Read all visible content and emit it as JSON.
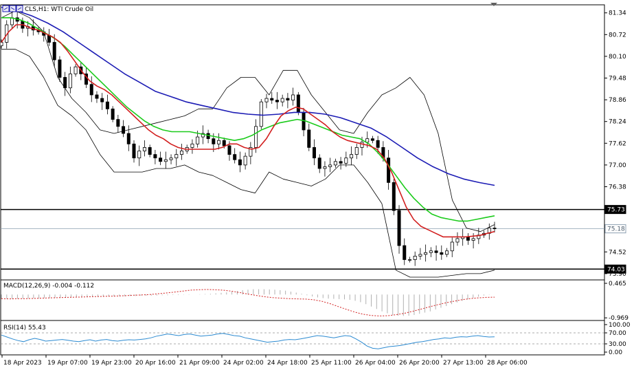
{
  "chart_data": [
    {
      "type": "line",
      "symbol": "CLS",
      "timeframe": "H1",
      "title": "WTI Crude Oil",
      "x_labels": [
        "18 Apr 2023",
        "19 Apr 07:00",
        "19 Apr 23:00",
        "20 Apr 16:00",
        "21 Apr 09:00",
        "24 Apr 02:00",
        "24 Apr 18:00",
        "25 Apr 11:00",
        "26 Apr 04:00",
        "26 Apr 20:00",
        "27 Apr 13:00",
        "28 Apr 06:00"
      ],
      "y_ticks": [
        "81.34",
        "80.72",
        "80.10",
        "79.48",
        "78.86",
        "78.24",
        "77.62",
        "77.00",
        "76.38",
        "74.52",
        "73.90"
      ],
      "ylim": [
        73.78,
        81.55
      ],
      "price_labels": [
        {
          "value": 75.73,
          "text": "75.73",
          "style": "black"
        },
        {
          "value": 75.18,
          "text": "75.18",
          "style": "gray"
        },
        {
          "value": 74.03,
          "text": "74.03",
          "style": "black"
        }
      ],
      "horizontal_lines": [
        75.73,
        74.03
      ],
      "current_price": 75.18,
      "close": [
        80.5,
        81.0,
        81.2,
        81.1,
        80.9,
        80.95,
        80.85,
        80.8,
        80.7,
        80.5,
        80.0,
        79.5,
        79.2,
        79.6,
        79.8,
        79.6,
        79.3,
        79.0,
        78.9,
        78.8,
        78.6,
        78.3,
        78.1,
        77.9,
        77.6,
        77.2,
        77.4,
        77.5,
        77.3,
        77.2,
        77.1,
        77.15,
        77.2,
        77.3,
        77.4,
        77.5,
        77.6,
        77.8,
        77.9,
        77.75,
        77.6,
        77.7,
        77.55,
        77.3,
        77.15,
        77.0,
        77.25,
        77.5,
        78.1,
        78.8,
        78.9,
        78.85,
        78.8,
        78.9,
        78.85,
        79.0,
        78.5,
        78.0,
        77.5,
        77.2,
        76.9,
        76.95,
        77.0,
        77.1,
        77.05,
        77.2,
        77.3,
        77.5,
        77.65,
        77.75,
        77.7,
        77.5,
        77.2,
        76.5,
        75.7,
        74.7,
        74.3,
        74.3,
        74.4,
        74.45,
        74.5,
        74.55,
        74.5,
        74.45,
        74.55,
        74.8,
        74.9,
        74.95,
        74.85,
        74.9,
        75.0,
        75.05,
        75.2,
        75.18
      ],
      "ema_red": [
        80.5,
        80.8,
        81.0,
        81.0,
        80.9,
        80.85,
        80.75,
        80.65,
        80.5,
        80.25,
        79.95,
        79.65,
        79.4,
        79.25,
        79.15,
        79.0,
        78.8,
        78.6,
        78.4,
        78.2,
        78.0,
        77.85,
        77.75,
        77.6,
        77.5,
        77.45,
        77.45,
        77.45,
        77.45,
        77.45,
        77.5,
        77.6,
        77.6,
        77.5,
        77.45,
        77.5,
        77.75,
        78.1,
        78.4,
        78.55,
        78.65,
        78.6,
        78.45,
        78.3,
        78.15,
        77.95,
        77.8,
        77.7,
        77.65,
        77.6,
        77.55,
        77.45,
        77.2,
        76.8,
        76.3,
        75.8,
        75.45,
        75.25,
        75.15,
        75.05,
        74.95,
        74.95,
        74.95,
        74.95,
        74.97,
        74.99,
        75.05,
        75.1
      ],
      "ema_green": [
        81.2,
        81.2,
        81.15,
        81.05,
        80.9,
        80.75,
        80.6,
        80.4,
        80.15,
        79.9,
        79.65,
        79.4,
        79.15,
        78.9,
        78.65,
        78.45,
        78.25,
        78.1,
        78.0,
        77.95,
        77.95,
        77.95,
        77.9,
        77.85,
        77.8,
        77.75,
        77.7,
        77.75,
        77.85,
        78.0,
        78.1,
        78.2,
        78.25,
        78.3,
        78.25,
        78.15,
        78.05,
        77.95,
        77.85,
        77.8,
        77.75,
        77.6,
        77.35,
        77.05,
        76.7,
        76.35,
        76.05,
        75.8,
        75.6,
        75.5,
        75.45,
        75.4,
        75.4,
        75.45,
        75.5,
        75.55
      ],
      "sma_blue": [
        81.5,
        81.4,
        81.25,
        81.05,
        80.8,
        80.5,
        80.2,
        79.9,
        79.6,
        79.35,
        79.1,
        78.95,
        78.8,
        78.7,
        78.6,
        78.5,
        78.45,
        78.42,
        78.45,
        78.5,
        78.5,
        78.45,
        78.35,
        78.2,
        78.05,
        77.8,
        77.5,
        77.2,
        76.95,
        76.75,
        76.6,
        76.5,
        76.42
      ],
      "bb_upper": [
        81.2,
        81.4,
        81.2,
        80.8,
        79.5,
        78.9,
        78.5,
        78.0,
        77.9,
        78.0,
        78.1,
        78.2,
        78.3,
        78.4,
        78.6,
        78.6,
        79.2,
        79.5,
        79.5,
        79.0,
        79.7,
        79.7,
        79.0,
        78.5,
        78.0,
        77.9,
        78.5,
        79.0,
        79.2,
        79.5,
        79.0,
        77.9,
        76.0,
        75.2,
        75.1,
        75.3
      ],
      "bb_lower": [
        80.3,
        80.3,
        80.1,
        79.5,
        78.7,
        78.4,
        78.0,
        77.3,
        76.8,
        76.8,
        76.8,
        76.9,
        76.9,
        77.0,
        76.8,
        76.7,
        76.5,
        76.3,
        76.2,
        76.8,
        76.6,
        76.5,
        76.4,
        76.6,
        77.0,
        77.0,
        76.5,
        75.9,
        74.0,
        73.8,
        73.8,
        73.8,
        73.85,
        73.9,
        73.9,
        74.0
      ]
    },
    {
      "type": "bar",
      "indicator": "MACD",
      "title": "MACD(12,26,9)",
      "values_text": "-0.004 -0.112",
      "y_ticks": [
        "0.465",
        "-0.969"
      ],
      "ylim": [
        -1.05,
        0.55
      ],
      "histogram": [
        -0.18,
        -0.18,
        -0.18,
        -0.18,
        -0.17,
        -0.17,
        -0.16,
        -0.16,
        -0.15,
        -0.15,
        -0.14,
        -0.14,
        -0.13,
        -0.13,
        -0.12,
        -0.12,
        -0.11,
        -0.1,
        -0.1,
        -0.09,
        -0.08,
        -0.08,
        -0.07,
        -0.07,
        -0.06,
        -0.06,
        -0.05,
        -0.05,
        -0.04,
        -0.04,
        -0.03,
        -0.03,
        -0.02,
        -0.02,
        -0.01,
        -0.01,
        0.0,
        0.01,
        0.02,
        0.03,
        0.05,
        0.07,
        0.09,
        0.12,
        0.15,
        0.18,
        0.2,
        0.22,
        0.22,
        0.22,
        0.21,
        0.2,
        0.18,
        0.16,
        0.12,
        0.08,
        0.03,
        -0.03,
        -0.08,
        -0.12,
        -0.15,
        -0.17,
        -0.18,
        -0.19,
        -0.2,
        -0.22,
        -0.26,
        -0.32,
        -0.4,
        -0.5,
        -0.6,
        -0.7,
        -0.78,
        -0.85,
        -0.88,
        -0.89,
        -0.88,
        -0.85,
        -0.8,
        -0.75,
        -0.7,
        -0.62,
        -0.55,
        -0.48,
        -0.4,
        -0.33,
        -0.26,
        -0.2,
        -0.14,
        -0.09,
        -0.04,
        -0.01,
        0.0
      ],
      "signal": [
        -0.17,
        -0.18,
        -0.17,
        -0.17,
        -0.16,
        -0.15,
        -0.14,
        -0.13,
        -0.12,
        -0.11,
        -0.1,
        -0.09,
        -0.08,
        -0.07,
        -0.06,
        -0.05,
        -0.03,
        -0.02,
        0.0,
        0.03,
        0.06,
        0.1,
        0.14,
        0.18,
        0.2,
        0.21,
        0.2,
        0.18,
        0.14,
        0.08,
        0.02,
        -0.04,
        -0.09,
        -0.13,
        -0.15,
        -0.17,
        -0.18,
        -0.19,
        -0.22,
        -0.28,
        -0.38,
        -0.5,
        -0.62,
        -0.73,
        -0.82,
        -0.87,
        -0.89,
        -0.88,
        -0.84,
        -0.78,
        -0.7,
        -0.61,
        -0.52,
        -0.43,
        -0.35,
        -0.28,
        -0.22,
        -0.17,
        -0.14,
        -0.12,
        -0.11
      ]
    },
    {
      "type": "line",
      "indicator": "RSI",
      "title": "RSI(14)",
      "value_text": "55.43",
      "y_ticks": [
        "100.00",
        "70.00",
        "30.00",
        "0.00"
      ],
      "ylim": [
        0,
        100
      ],
      "levels": [
        70,
        30
      ],
      "values": [
        62,
        55,
        48,
        42,
        38,
        45,
        50,
        46,
        40,
        42,
        44,
        46,
        43,
        40,
        38,
        42,
        45,
        40,
        44,
        46,
        42,
        40,
        43,
        45,
        44,
        46,
        48,
        52,
        58,
        62,
        66,
        63,
        60,
        64,
        66,
        62,
        58,
        60,
        62,
        66,
        68,
        64,
        60,
        58,
        52,
        48,
        44,
        40,
        36,
        38,
        40,
        44,
        46,
        45,
        48,
        52,
        56,
        60,
        58,
        55,
        52,
        56,
        60,
        58,
        48,
        36,
        22,
        14,
        12,
        16,
        20,
        22,
        24,
        28,
        32,
        36,
        38,
        42,
        46,
        48,
        52,
        50,
        54,
        56,
        55,
        58,
        60,
        57,
        55,
        55.43
      ]
    }
  ],
  "ui": {
    "header_icon": "chart-icon",
    "collapse_marker": "triangle-down-icon"
  },
  "colors": {
    "ema_red": "#d21f1f",
    "ema_green": "#1bcb1b",
    "sma_blue": "#1b1bb4",
    "bollinger": "#000000",
    "macd_signal": "#d21f1f",
    "macd_hist": "#b0b0b0",
    "rsi_line": "#2b8ad1",
    "candle": "#000000",
    "bull_candle_body": "#000000"
  }
}
